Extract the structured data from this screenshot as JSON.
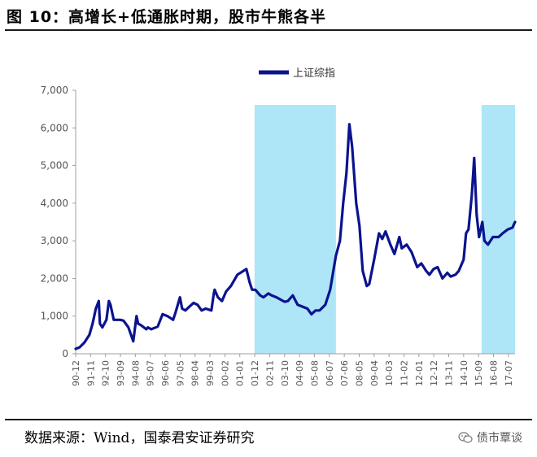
{
  "figure": {
    "title": "图  10：高增长+低通胀时期，股市牛熊各半",
    "source": "数据来源：Wind，国泰君安证券研究",
    "watermark": "债市覃谈",
    "watermark_icon": "wechat-icon"
  },
  "colors": {
    "series": "#0b138f",
    "band": "#aee5f7",
    "axis": "#9e9e9e",
    "tick_text": "#555555"
  },
  "chart_data": {
    "type": "line",
    "title": "",
    "xlabel": "",
    "ylabel": "",
    "ylim": [
      0,
      7000
    ],
    "yticks": [
      0,
      1000,
      2000,
      3000,
      4000,
      5000,
      6000,
      7000
    ],
    "ytick_labels": [
      "0",
      "1,000",
      "2,000",
      "3,000",
      "4,000",
      "5,000",
      "6,000",
      "7,000"
    ],
    "x_range": [
      1990.958,
      2017.958
    ],
    "xtick_labels": [
      "90-12",
      "91-11",
      "92-10",
      "93-09",
      "94-08",
      "95-07",
      "96-06",
      "97-05",
      "98-04",
      "99-03",
      "00-02",
      "01-01",
      "01-12",
      "02-11",
      "03-10",
      "04-09",
      "05-08",
      "06-07",
      "07-06",
      "08-05",
      "09-04",
      "10-03",
      "11-02",
      "12-01",
      "12-12",
      "13-11",
      "14-10",
      "15-09",
      "16-08",
      "17-07"
    ],
    "legend": {
      "label": "上证综指",
      "position": "top-center"
    },
    "shaded_periods": [
      {
        "start": 2001.95,
        "end": 2006.95
      },
      {
        "start": 2015.9,
        "end": 2017.96
      }
    ],
    "series": [
      {
        "name": "上证综指",
        "x": [
          1990.96,
          1991.2,
          1991.5,
          1991.8,
          1992.0,
          1992.2,
          1992.38,
          1992.45,
          1992.6,
          1992.85,
          1993.0,
          1993.1,
          1993.3,
          1993.5,
          1993.7,
          1993.9,
          1994.2,
          1994.5,
          1994.58,
          1994.7,
          1994.8,
          1995.0,
          1995.3,
          1995.4,
          1995.6,
          1996.0,
          1996.3,
          1996.6,
          1996.95,
          1997.1,
          1997.37,
          1997.5,
          1997.7,
          1997.95,
          1998.2,
          1998.45,
          1998.7,
          1998.95,
          1999.3,
          1999.45,
          1999.5,
          1999.7,
          1999.95,
          2000.2,
          2000.5,
          2000.9,
          2001.45,
          2001.65,
          2001.8,
          2002.0,
          2002.3,
          2002.5,
          2002.8,
          2003.0,
          2003.3,
          2003.5,
          2003.8,
          2004.0,
          2004.3,
          2004.6,
          2004.9,
          2005.2,
          2005.45,
          2005.7,
          2005.95,
          2006.3,
          2006.6,
          2006.95,
          2007.2,
          2007.4,
          2007.6,
          2007.78,
          2007.95,
          2008.2,
          2008.4,
          2008.6,
          2008.85,
          2009.0,
          2009.3,
          2009.6,
          2009.8,
          2010.0,
          2010.3,
          2010.55,
          2010.85,
          2011.0,
          2011.3,
          2011.6,
          2011.95,
          2012.2,
          2012.5,
          2012.7,
          2012.95,
          2013.2,
          2013.5,
          2013.8,
          2014.0,
          2014.3,
          2014.5,
          2014.8,
          2014.95,
          2015.1,
          2015.3,
          2015.45,
          2015.6,
          2015.75,
          2015.95,
          2016.08,
          2016.3,
          2016.6,
          2016.95,
          2017.2,
          2017.5,
          2017.8,
          2017.96
        ],
        "values": [
          130,
          170,
          300,
          500,
          800,
          1200,
          1400,
          800,
          700,
          900,
          1400,
          1300,
          900,
          900,
          900,
          880,
          700,
          330,
          600,
          1000,
          800,
          750,
          650,
          700,
          650,
          720,
          1050,
          1000,
          900,
          1100,
          1500,
          1200,
          1150,
          1250,
          1350,
          1300,
          1150,
          1200,
          1150,
          1600,
          1700,
          1500,
          1400,
          1650,
          1800,
          2100,
          2250,
          1900,
          1700,
          1700,
          1550,
          1500,
          1600,
          1550,
          1500,
          1450,
          1380,
          1400,
          1550,
          1300,
          1250,
          1200,
          1050,
          1150,
          1150,
          1300,
          1700,
          2600,
          3000,
          4000,
          4800,
          6100,
          5500,
          4000,
          3400,
          2200,
          1800,
          1850,
          2500,
          3200,
          3050,
          3250,
          2900,
          2650,
          3100,
          2800,
          2900,
          2700,
          2300,
          2400,
          2200,
          2100,
          2250,
          2300,
          2000,
          2150,
          2050,
          2100,
          2200,
          2500,
          3200,
          3300,
          4200,
          5200,
          3700,
          3100,
          3500,
          3000,
          2900,
          3100,
          3100,
          3200,
          3300,
          3350,
          3500
        ]
      }
    ]
  }
}
